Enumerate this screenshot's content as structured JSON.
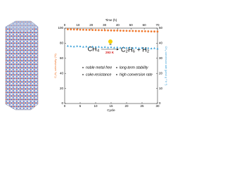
{
  "chart_data": {
    "type": "scatter",
    "x_label": "Cycle",
    "x2_label": "Time (h)",
    "y_label": "C₂H₆ selectivity (%)",
    "y2_label": "CH₄ conversion rate (μmol g⁻¹ h⁻¹)",
    "xlim": [
      0,
      30
    ],
    "xticks": [
      0,
      5,
      10,
      15,
      20,
      25,
      30
    ],
    "x2lim": [
      0,
      70
    ],
    "x2ticks": [
      0,
      10,
      20,
      30,
      40,
      50,
      60,
      70
    ],
    "ylim": [
      0,
      100
    ],
    "yticks": [
      0,
      20,
      40,
      60,
      80,
      100
    ],
    "y2lim": [
      0,
      50
    ],
    "y2ticks": [
      0,
      10,
      20,
      30,
      40,
      50
    ],
    "x": [
      1,
      2,
      3,
      4,
      5,
      6,
      7,
      8,
      9,
      10,
      11,
      12,
      13,
      14,
      15,
      16,
      17,
      18,
      19,
      20,
      21,
      22,
      23,
      24,
      25,
      26,
      27,
      28,
      29,
      30
    ],
    "series": [
      {
        "name": "C₂H₆ selectivity",
        "color": "#f07a30",
        "marker": "circle",
        "values": [
          98.5,
          98.4,
          98.2,
          98.1,
          98,
          97.9,
          97.8,
          97.7,
          97.6,
          97.5,
          97.4,
          97.3,
          97.2,
          97.1,
          97,
          96.9,
          96.8,
          96.7,
          96.6,
          96.5,
          96.4,
          96.3,
          96.2,
          96.1,
          96,
          95.9,
          95.8,
          95.7,
          95.6,
          95.5
        ]
      },
      {
        "name": "CH₄ conversion rate",
        "color": "#3aa0d8",
        "marker": "triangle",
        "axis": "y2",
        "values": [
          38.2,
          38,
          37.8,
          38.1,
          37.9,
          37.6,
          37.8,
          37.5,
          37.7,
          37.4,
          37.6,
          37.3,
          37.5,
          37.2,
          37.4,
          37.1,
          37.3,
          37,
          37.2,
          36.9,
          37.1,
          36.8,
          37,
          36.7,
          36.9,
          36.6,
          36.8,
          36.5,
          36.7,
          36.4
        ]
      }
    ],
    "reaction": {
      "reactant": "CH₄",
      "condition": "293 K",
      "product": "C₂H₆ + H₂"
    },
    "features": [
      "noble metal free",
      "long-term stability",
      "coke-resistance",
      "high conversion rate"
    ]
  }
}
